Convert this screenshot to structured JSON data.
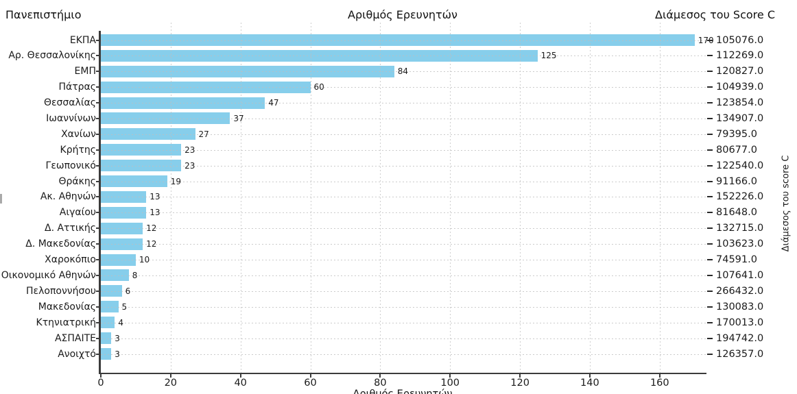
{
  "headers": {
    "left": "Πανεπιστήμιο",
    "center": "Αριθμός Ερευνητών",
    "right": "Διάμεσος του Score C"
  },
  "chart_data": {
    "type": "bar",
    "orientation": "horizontal",
    "title": "",
    "xlabel": "Αριθμός Ερευνητών",
    "ylabel_left": "Πανεπιστήμιο",
    "ylabel_right": "Διάμεσος του score C",
    "xlim": [
      0,
      173
    ],
    "x_ticks": [
      0,
      20,
      40,
      60,
      80,
      100,
      120,
      140,
      160
    ],
    "grid": true,
    "grid_style": "dashed",
    "bar_color": "#87CEEB",
    "spine_color": "#3b3b3b",
    "grid_color": "#cfcfcf",
    "categories": [
      "ΕΚΠΑ",
      "Αρ. Θεσσαλονίκης",
      "ΕΜΠ",
      "Πάτρας",
      "Θεσσαλίας",
      "Ιωαννίνων",
      "Χανίων",
      "Κρήτης",
      "Γεωπονικό",
      "Θράκης",
      "Ακ. Αθηνών",
      "Αιγαίου",
      "Δ. Αττικής",
      "Δ. Μακεδονίας",
      "Χαροκόπιο",
      "Οικονομικό Αθηνών",
      "Πελοποννήσου",
      "Μακεδονίας",
      "Κτηνιατρική",
      "ΑΣΠΑΙΤΕ",
      "Ανοιχτό"
    ],
    "series": [
      {
        "name": "Αριθμός Ερευνητών",
        "values": [
          170,
          125,
          84,
          60,
          47,
          37,
          27,
          23,
          23,
          19,
          13,
          13,
          12,
          12,
          10,
          8,
          6,
          5,
          4,
          3,
          3
        ]
      },
      {
        "name": "Διάμεσος του Score C",
        "values": [
          105076.0,
          112269.0,
          120827.0,
          104939.0,
          123854.0,
          134907.0,
          79395.0,
          80677.0,
          122540.0,
          91166.0,
          152226.0,
          81648.0,
          132715.0,
          103623.0,
          74591.0,
          107641.0,
          266432.0,
          130083.0,
          170013.0,
          194742.0,
          126357.0
        ]
      }
    ]
  }
}
